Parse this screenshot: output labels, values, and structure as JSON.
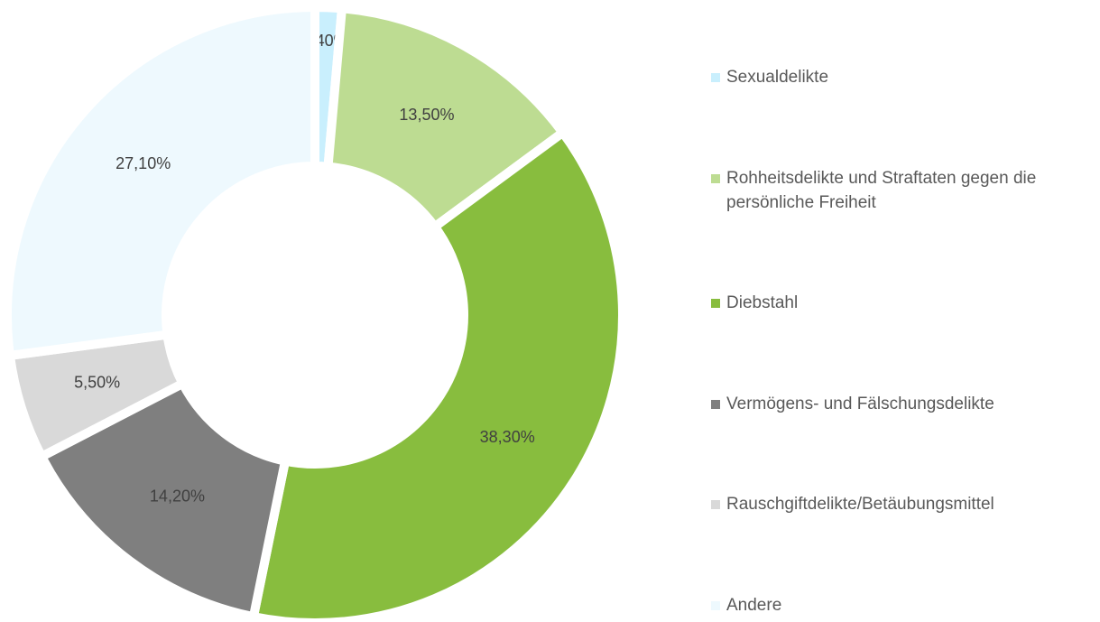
{
  "chart_data": {
    "type": "donut",
    "categories": [
      "Sexualdelikte",
      "Rohheitsdelikte und Straftaten gegen die persönliche Freiheit",
      "Diebstahl",
      "Vermögens- und Fälschungsdelikte",
      "Rauschgiftdelikte/Betäubungsmittel",
      "Andere"
    ],
    "values": [
      1.4,
      13.5,
      38.3,
      14.2,
      5.5,
      27.1
    ],
    "value_labels": [
      "1,40%",
      "13,50%",
      "38,30%",
      "14,20%",
      "5,50%",
      "27,10%"
    ],
    "colors": [
      "#c9effd",
      "#bddc92",
      "#88bd3e",
      "#7f7f7f",
      "#d9d9d9",
      "#eef9fe"
    ],
    "legend": "right"
  }
}
